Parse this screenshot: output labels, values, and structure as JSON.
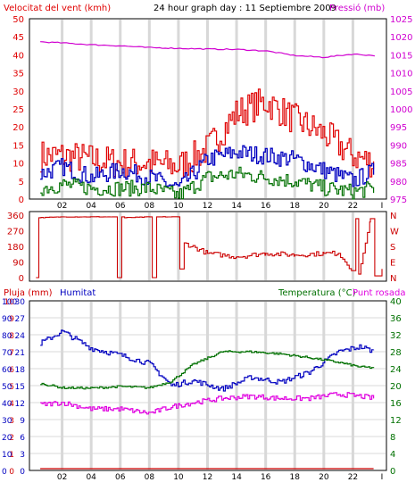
{
  "colors": {
    "wind": "#e00000",
    "pressure": "#d000d0",
    "direction": "#cc0000",
    "humidity": "#0000c0",
    "temperature": "#007000",
    "dewpoint": "#e000e0",
    "rain": "#d00000",
    "grid": "#d8d8d8",
    "frame": "#000000"
  },
  "chart_data": [
    {
      "type": "line",
      "title": "24 hour graph day : 11 Septiembre 2009",
      "left_axis_label": "Velocitat del vent (kmh)",
      "right_axis_label": "Pressió (mb)",
      "x_ticks": [
        "02",
        "04",
        "06",
        "08",
        "10",
        "12",
        "14",
        "16",
        "18",
        "20",
        "22"
      ],
      "x_end_tick": "I",
      "y_left_ticks": [
        "50",
        "45",
        "40",
        "35",
        "30",
        "25",
        "20",
        "15",
        "10",
        "5",
        "0"
      ],
      "y_right_ticks": [
        "1025",
        "1020",
        "1015",
        "1010",
        "1005",
        "1000",
        "995",
        "990",
        "985",
        "980",
        "975"
      ],
      "ylim_left": [
        0,
        50
      ],
      "ylim_right": [
        975,
        1025
      ],
      "grid": true,
      "x_hours": [
        0.5,
        2,
        4,
        6,
        8,
        10,
        12,
        14,
        16,
        18,
        20,
        22,
        23.5
      ],
      "series": [
        {
          "key": "gust",
          "color": "wind",
          "axis": "left",
          "values": [
            12,
            12,
            11,
            10,
            10,
            9,
            14,
            24,
            27,
            22,
            18,
            12,
            10
          ]
        },
        {
          "key": "wind_avg",
          "color": "humidity",
          "axis": "left",
          "values": [
            7,
            9,
            6,
            8,
            6,
            3,
            11,
            13,
            12,
            11,
            8,
            5,
            8
          ]
        },
        {
          "key": "wind_min",
          "color": "temperature",
          "axis": "left",
          "values": [
            3,
            4,
            3,
            3,
            3,
            1,
            6,
            7,
            6,
            5,
            3,
            2,
            3
          ]
        },
        {
          "key": "pressure",
          "color": "pressure",
          "axis": "right",
          "values": [
            1018.6,
            1018.3,
            1017.8,
            1017.5,
            1017.0,
            1016.8,
            1016.6,
            1016.5,
            1016.1,
            1014.8,
            1014.3,
            1015.2,
            1014.8
          ]
        }
      ]
    },
    {
      "type": "line",
      "title": "",
      "left_axis_ticks": [
        "360",
        "270",
        "180",
        "90",
        "0"
      ],
      "right_axis_ticks": [
        "N",
        "W",
        "S",
        "E",
        "N"
      ],
      "ylim": [
        0,
        360
      ],
      "x_hours": [
        0.2,
        0.4,
        2,
        5.6,
        5.8,
        6.1,
        6.3,
        8.0,
        8.2,
        8.5,
        10.0,
        10.1,
        10.4,
        12,
        14,
        16,
        18,
        20,
        21,
        22.0,
        22.2,
        22.4,
        23.2,
        23.5,
        24
      ],
      "values": [
        0,
        345,
        350,
        350,
        0,
        350,
        345,
        350,
        0,
        350,
        350,
        50,
        200,
        140,
        120,
        140,
        130,
        140,
        140,
        40,
        340,
        20,
        340,
        10,
        50
      ],
      "series_name": "wind direction"
    },
    {
      "type": "line",
      "title": "",
      "left_labels": [
        "Pluja (mm)",
        "Humitat"
      ],
      "right_labels": [
        "Temperatura (°C)",
        "Punt rosada"
      ],
      "y_rain_ticks": [
        "10",
        "9",
        "8",
        "7",
        "6",
        "5",
        "4",
        "3",
        "2",
        "1",
        "0"
      ],
      "y_humidity_ticks": [
        "100",
        "90",
        "80",
        "70",
        "60",
        "50",
        "40",
        "30",
        "20",
        "10",
        "0"
      ],
      "y_left_ticks": [
        "30",
        "27",
        "24",
        "21",
        "18",
        "15",
        "12",
        "9",
        "6",
        "3",
        "0"
      ],
      "y_right_ticks": [
        "40",
        "36",
        "32",
        "28",
        "24",
        "20",
        "16",
        "12",
        "8",
        "4",
        "0"
      ],
      "ylim_humidity": [
        0,
        100
      ],
      "ylim_temperature": [
        0,
        40
      ],
      "x_hours": [
        0.5,
        2,
        4,
        6,
        8,
        9.5,
        11,
        13,
        15,
        17,
        19,
        21,
        22.5,
        23.5
      ],
      "series": [
        {
          "key": "humidity",
          "color": "humidity",
          "axis": "humidity",
          "values": [
            75,
            82,
            72,
            68,
            63,
            50,
            53,
            48,
            55,
            52,
            58,
            70,
            73,
            70
          ]
        },
        {
          "key": "temperature",
          "color": "temperature",
          "axis": "temperature",
          "values": [
            20.5,
            19.5,
            19.4,
            19.8,
            19.5,
            21,
            25,
            28,
            28,
            27.5,
            26.6,
            25.5,
            24.4,
            24.2
          ]
        },
        {
          "key": "dewpoint",
          "color": "dewpoint",
          "axis": "temperature",
          "values": [
            15.5,
            16,
            14.5,
            14.5,
            13.5,
            15,
            16,
            17,
            17.5,
            17,
            17,
            18,
            17.5,
            17
          ]
        },
        {
          "key": "rain",
          "color": "rain",
          "axis": "rain",
          "values": [
            0,
            0,
            0,
            0,
            0,
            0,
            0,
            0,
            0,
            0,
            0,
            0,
            0,
            0
          ]
        }
      ]
    }
  ]
}
